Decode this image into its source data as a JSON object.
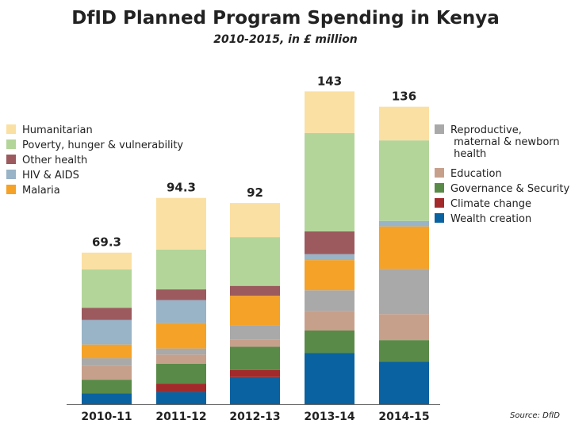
{
  "title": "DfID Planned Program Spending in Kenya",
  "subtitle": "2010-2015, in £ million",
  "source": "Source: DfID",
  "chart_data": {
    "type": "bar",
    "stacked": true,
    "categories": [
      "2010-11",
      "2011-12",
      "2012-13",
      "2013-14",
      "2014-15"
    ],
    "totals": [
      "69.3",
      "94.3",
      "92",
      "143",
      "136"
    ],
    "series": [
      {
        "name": "Wealth creation",
        "color": "#0a62a0",
        "values": [
          4.9,
          5.6,
          12.4,
          23.5,
          19.4
        ]
      },
      {
        "name": "Climate change",
        "color": "#a32a2a",
        "values": [
          0,
          3.8,
          3.3,
          0,
          0
        ]
      },
      {
        "name": "Governance & Security",
        "color": "#5a8a48",
        "values": [
          6.3,
          9.1,
          10.6,
          10.2,
          9.9
        ]
      },
      {
        "name": "Education",
        "color": "#c7a08c",
        "values": [
          6.3,
          4.2,
          3.3,
          9.0,
          11.9
        ]
      },
      {
        "name": "Reproductive, maternal & newborn health",
        "color": "#a9a9a9",
        "values": [
          3.5,
          2.8,
          6.3,
          9.4,
          20.7
        ]
      },
      {
        "name": "Malaria",
        "color": "#f5a228",
        "values": [
          6.3,
          11.6,
          13.7,
          13.8,
          19.4
        ]
      },
      {
        "name": "HIV & AIDS",
        "color": "#99b3c7",
        "values": [
          11.2,
          10.5,
          0,
          2.7,
          2.5
        ]
      },
      {
        "name": "Other health",
        "color": "#9c5a5e",
        "values": [
          5.6,
          4.9,
          4.5,
          10.4,
          0
        ]
      },
      {
        "name": "Poverty, hunger & vulnerability",
        "color": "#b3d59a",
        "values": [
          17.5,
          18.2,
          22.3,
          45.0,
          36.8
        ]
      },
      {
        "name": "Humanitarian",
        "color": "#fbe0a3",
        "values": [
          7.7,
          23.6,
          15.6,
          19.0,
          15.4
        ]
      }
    ],
    "ylim": [
      0,
      150
    ],
    "grid": false,
    "legend": [
      {
        "column": "left",
        "items": [
          "Humanitarian",
          "Poverty, hunger & vulnerability",
          "Other health",
          "HIV & AIDS",
          "Malaria"
        ]
      },
      {
        "column": "right",
        "items": [
          "Reproductive, maternal & newborn health",
          "Education",
          "Governance & Security",
          "Climate change",
          "Wealth creation"
        ]
      }
    ]
  }
}
